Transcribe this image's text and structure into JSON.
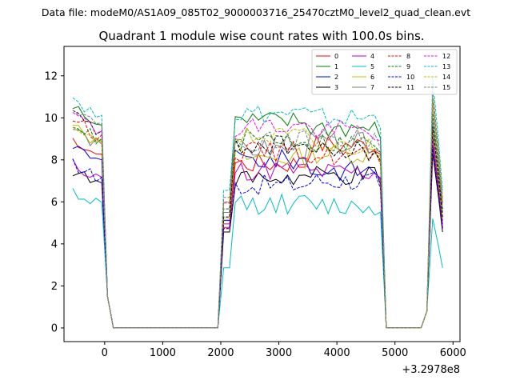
{
  "suptitle": "Data file: modeM0/AS1A09_085T02_9000003716_25470cztM0_level2_quad_clean.evt",
  "chart_data": {
    "type": "line",
    "title": "Quadrant 1 module wise count rates with 100.0s bins.",
    "xlabel": "",
    "ylabel": "",
    "x_offset_label": "+3.2978e8",
    "xlim": [
      -700,
      6120
    ],
    "ylim": [
      -0.65,
      13.4
    ],
    "xticks": [
      0,
      1000,
      2000,
      3000,
      4000,
      5000,
      6000
    ],
    "yticks": [
      0,
      2,
      4,
      6,
      8,
      10,
      12
    ],
    "grid": false,
    "legend_position": "top-right",
    "legend_columns": 4,
    "series": [
      {
        "name": "0",
        "color": "#ff0000",
        "dash": "solid",
        "level": [
          9.0,
          7.8,
          8.7,
          8.7
        ]
      },
      {
        "name": "1",
        "color": "#008000",
        "dash": "solid",
        "level": [
          10.5,
          9.8,
          9.5,
          10.9
        ]
      },
      {
        "name": "2",
        "color": "#0000ff",
        "dash": "solid",
        "level": [
          8.7,
          8.0,
          7.5,
          9.3
        ]
      },
      {
        "name": "3",
        "color": "#000000",
        "dash": "solid",
        "level": [
          7.5,
          7.1,
          7.2,
          8.3
        ]
      },
      {
        "name": "4",
        "color": "#bf00bf",
        "dash": "solid",
        "level": [
          7.8,
          7.5,
          7.4,
          9.0
        ]
      },
      {
        "name": "5",
        "color": "#00bfbf",
        "dash": "solid",
        "level": [
          6.5,
          5.9,
          5.8,
          5.2
        ]
      },
      {
        "name": "6",
        "color": "#bfbf00",
        "dash": "solid",
        "level": [
          9.6,
          8.1,
          8.3,
          9.4
        ]
      },
      {
        "name": "7",
        "color": "#808080",
        "dash": "solid",
        "level": [
          9.5,
          8.5,
          8.8,
          10.0
        ]
      },
      {
        "name": "8",
        "color": "#ff0000",
        "dash": "dashed",
        "level": [
          10.0,
          8.4,
          8.2,
          8.6
        ]
      },
      {
        "name": "9",
        "color": "#008000",
        "dash": "dashed",
        "level": [
          9.8,
          9.0,
          8.8,
          10.3
        ]
      },
      {
        "name": "10",
        "color": "#0000ff",
        "dash": "dashed",
        "level": [
          7.8,
          6.8,
          7.0,
          8.6
        ]
      },
      {
        "name": "11",
        "color": "#000000",
        "dash": "dashed",
        "level": [
          10.2,
          8.7,
          8.4,
          9.6
        ]
      },
      {
        "name": "12",
        "color": "#ff00ff",
        "dash": "dashed",
        "level": [
          10.2,
          9.6,
          9.4,
          10.8
        ]
      },
      {
        "name": "13",
        "color": "#00bfbf",
        "dash": "dashed",
        "level": [
          11.0,
          10.2,
          10.0,
          11.9
        ]
      },
      {
        "name": "14",
        "color": "#bfbf00",
        "dash": "dashed",
        "level": [
          9.7,
          9.1,
          8.6,
          10.9
        ]
      },
      {
        "name": "15",
        "color": "#808080",
        "dash": "dashed",
        "level": [
          10.6,
          8.9,
          9.0,
          11.3
        ]
      }
    ]
  }
}
